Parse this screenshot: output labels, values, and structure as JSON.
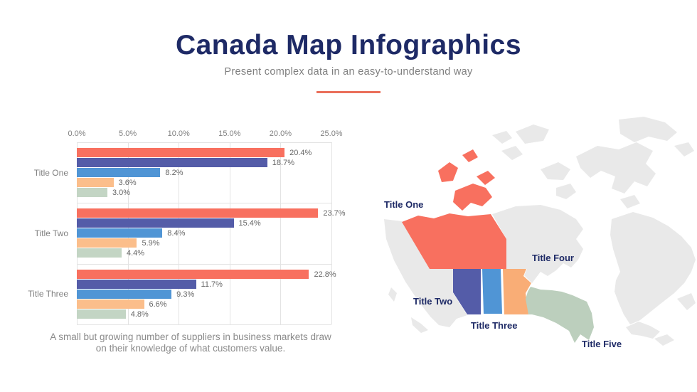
{
  "header": {
    "title": "Canada Map Infographics",
    "subtitle": "Present complex data in an easy-to-understand way"
  },
  "colors": {
    "navy": "#1E2A66",
    "divider": "#EA6F5B",
    "text_gray": "#7F7F7F",
    "value_gray": "#666666",
    "grid": "#E3E3E3"
  },
  "chart_data": {
    "type": "bar",
    "orientation": "horizontal",
    "title": "",
    "xlabel": "",
    "ylabel": "",
    "xlim": [
      0,
      25
    ],
    "x_ticks": [
      "0.0%",
      "5.0%",
      "10.0%",
      "15.0%",
      "20.0%",
      "25.0%"
    ],
    "grid": "on",
    "legend": "none",
    "value_suffix": "%",
    "categories": [
      "Title One",
      "Title Two",
      "Title Three"
    ],
    "series": [
      {
        "name": "series-salmon",
        "color": "#F8705F",
        "values": [
          20.4,
          23.7,
          22.8
        ]
      },
      {
        "name": "series-indigo",
        "color": "#545CA8",
        "values": [
          18.7,
          15.4,
          11.7
        ]
      },
      {
        "name": "series-blue",
        "color": "#5095D5",
        "values": [
          8.2,
          8.4,
          9.3
        ]
      },
      {
        "name": "series-orange",
        "color": "#FBBE8B",
        "values": [
          3.6,
          5.9,
          6.6
        ]
      },
      {
        "name": "series-green",
        "color": "#C3D5C4",
        "values": [
          3.0,
          4.4,
          4.8
        ]
      }
    ]
  },
  "map": {
    "base_color": "#E9E9E9",
    "region_colors": {
      "one": "#F8705F",
      "two": "#545CA8",
      "three": "#5095D5",
      "four": "#F9AD76",
      "five": "#BCCFBD"
    },
    "labels": [
      {
        "text": "Title One"
      },
      {
        "text": "Title Two"
      },
      {
        "text": "Title Three"
      },
      {
        "text": "Title Four"
      },
      {
        "text": "Title Five"
      }
    ]
  },
  "footer": {
    "lines": [
      "A small but growing number of suppliers in business markets draw",
      "on their knowledge of what customers value."
    ]
  }
}
